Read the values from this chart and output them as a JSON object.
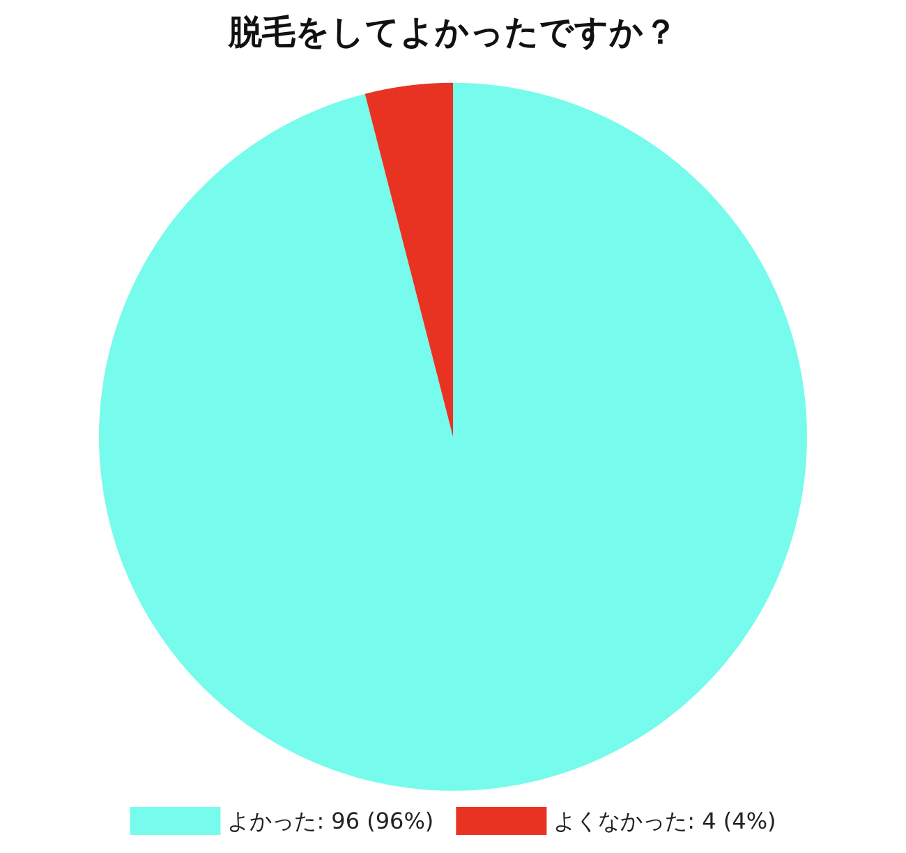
{
  "chart_data": {
    "type": "pie",
    "title": "脱毛をしてよかったですか？",
    "categories": [
      "よかった: 96 (96%)",
      "よくなかった: 4 (4%)"
    ],
    "values": [
      96,
      4
    ],
    "colors": [
      "#76fbec",
      "#e83323"
    ],
    "legend": "bottom"
  }
}
